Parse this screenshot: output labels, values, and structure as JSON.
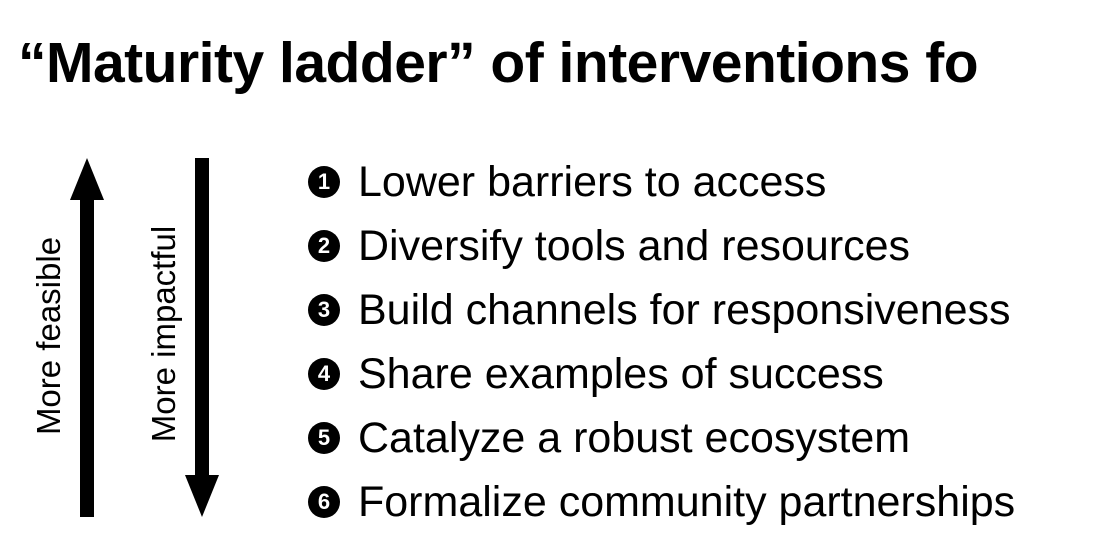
{
  "title": "“Maturity ladder” of interventions fo",
  "axes": {
    "up_label": "More feasible",
    "down_label": "More impactful"
  },
  "steps": [
    {
      "number": "1",
      "text": "Lower barriers to access"
    },
    {
      "number": "2",
      "text": "Diversify tools and resources"
    },
    {
      "number": "3",
      "text": "Build channels for responsiveness"
    },
    {
      "number": "4",
      "text": "Share examples of success"
    },
    {
      "number": "5",
      "text": "Catalyze a robust ecosystem"
    },
    {
      "number": "6",
      "text": "Formalize community partnerships"
    }
  ],
  "colors": {
    "background": "#ffffff",
    "foreground": "#000000"
  }
}
